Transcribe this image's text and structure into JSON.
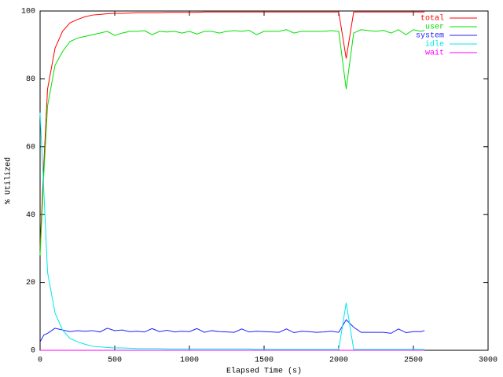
{
  "chart_data": {
    "type": "line",
    "xlabel": "Elapsed Time (s)",
    "ylabel": "% Utilized",
    "x": [
      0,
      25,
      50,
      100,
      150,
      200,
      250,
      300,
      350,
      400,
      450,
      500,
      550,
      600,
      650,
      700,
      750,
      800,
      850,
      900,
      950,
      1000,
      1050,
      1100,
      1150,
      1200,
      1250,
      1300,
      1350,
      1400,
      1450,
      1500,
      1550,
      1600,
      1650,
      1700,
      1750,
      1800,
      1850,
      1900,
      1950,
      2000,
      2050,
      2100,
      2150,
      2200,
      2250,
      2300,
      2350,
      2400,
      2450,
      2500,
      2550,
      2575
    ],
    "series": [
      {
        "name": "total",
        "color": "#ff0000",
        "values": [
          30,
          55,
          77,
          89,
          94,
          96.5,
          97.5,
          98.3,
          98.8,
          99,
          99.2,
          99.3,
          99.3,
          99.4,
          99.5,
          99.5,
          99.5,
          99.5,
          99.6,
          99.6,
          99.6,
          99.6,
          99.6,
          99.7,
          99.7,
          99.7,
          99.7,
          99.7,
          99.7,
          99.7,
          99.7,
          99.7,
          99.7,
          99.7,
          99.7,
          99.7,
          99.7,
          99.7,
          99.7,
          99.7,
          99.7,
          99.7,
          86,
          99.7,
          99.7,
          99.7,
          99.7,
          99.7,
          99.7,
          99.7,
          99.7,
          99.7,
          99.7,
          99.7
        ]
      },
      {
        "name": "user",
        "color": "#00e000",
        "values": [
          28,
          52,
          72,
          84,
          88,
          91,
          92,
          92.5,
          93,
          93.5,
          94,
          92.8,
          93.5,
          94,
          94,
          94.2,
          93,
          94,
          93.8,
          94,
          93.5,
          94,
          93.2,
          94,
          94,
          93.5,
          94,
          94.2,
          94,
          94.3,
          93,
          94,
          94,
          94,
          94.5,
          93.5,
          94,
          94,
          94,
          94,
          94.2,
          94,
          77,
          93.5,
          94.5,
          94.2,
          94,
          94.3,
          93.5,
          94.5,
          93,
          94.5,
          94,
          94.3
        ]
      },
      {
        "name": "system",
        "color": "#2020ff",
        "values": [
          2.5,
          4.5,
          5,
          6.5,
          6,
          5.5,
          5.8,
          5.6,
          5.8,
          5.4,
          6.5,
          5.8,
          6,
          5.5,
          5.6,
          5.4,
          6.4,
          5.5,
          5.9,
          5.4,
          5.6,
          5.5,
          6.4,
          5.3,
          5.8,
          5.5,
          5.4,
          5.3,
          6.3,
          5.4,
          5.6,
          5.5,
          5.4,
          5.3,
          6.3,
          5.2,
          5.6,
          5.5,
          5.3,
          5.4,
          5.6,
          5.3,
          9,
          6.8,
          5.3,
          5.3,
          5.3,
          5.3,
          5,
          6.3,
          5.2,
          5.5,
          5.5,
          5.8
        ]
      },
      {
        "name": "idle",
        "color": "#00e8e8",
        "values": [
          70,
          47,
          23,
          11,
          6,
          3.5,
          2.5,
          1.8,
          1.2,
          1,
          0.8,
          0.7,
          0.7,
          0.6,
          0.5,
          0.5,
          0.5,
          0.5,
          0.4,
          0.4,
          0.4,
          0.4,
          0.4,
          0.4,
          0.4,
          0.4,
          0.4,
          0.4,
          0.4,
          0.4,
          0.3,
          0.3,
          0.3,
          0.3,
          0.3,
          0.3,
          0.3,
          0.3,
          0.3,
          0.3,
          0.3,
          0.3,
          14,
          0.3,
          0.3,
          0.3,
          0.3,
          0.3,
          0.3,
          0.3,
          0.3,
          0.3,
          0.3,
          0.3
        ]
      },
      {
        "name": "wait",
        "color": "#ff00ff",
        "values": [
          0,
          0,
          0,
          0,
          0,
          0,
          0,
          0,
          0,
          0,
          0,
          0,
          0,
          0,
          0,
          0,
          0,
          0,
          0,
          0,
          0,
          0,
          0,
          0,
          0,
          0,
          0,
          0,
          0,
          0,
          0,
          0,
          0,
          0,
          0,
          0,
          0,
          0,
          0,
          0,
          0,
          0,
          0,
          0,
          0,
          0,
          0,
          0,
          0,
          0,
          0,
          0,
          0,
          0
        ]
      }
    ],
    "xlim": [
      0,
      3000
    ],
    "xticks": [
      0,
      500,
      1000,
      1500,
      2000,
      2500,
      3000
    ],
    "ylim": [
      0,
      100
    ],
    "yticks": [
      0,
      20,
      40,
      60,
      80,
      100
    ],
    "legend": "top-right"
  }
}
